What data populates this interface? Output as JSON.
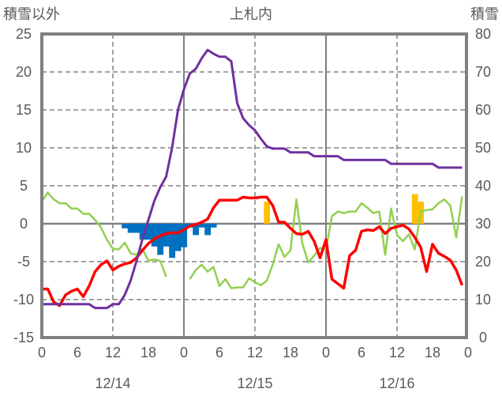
{
  "chart_data": {
    "type": "line",
    "title": "上札内",
    "ylabel_left": "積雪以外",
    "ylabel_right": "積雪",
    "ylim_left": [
      -15,
      25
    ],
    "ylim_right": [
      0,
      80
    ],
    "left_ticks": [
      "25",
      "20",
      "15",
      "10",
      "5",
      "0",
      "-5",
      "-10",
      "-15"
    ],
    "right_ticks": [
      "80",
      "70",
      "60",
      "50",
      "40",
      "30",
      "20",
      "10",
      "0"
    ],
    "x_range_hours": [
      0,
      72
    ],
    "x_tick_labels": [
      "0",
      "6",
      "12",
      "18",
      "0",
      "6",
      "12",
      "18",
      "0",
      "6",
      "12",
      "18",
      "0"
    ],
    "date_labels": [
      "12/14",
      "12/15",
      "12/16"
    ],
    "grid": true,
    "series": [
      {
        "key": "purple",
        "kind": "line",
        "color": "#7030A0",
        "values": [
          -10.6,
          -10.6,
          -10.6,
          -10.6,
          -10.6,
          -10.6,
          -10.6,
          -10.6,
          -10.6,
          -11.1,
          -11.1,
          -11.1,
          -10.6,
          -10.6,
          -9.4,
          -7.5,
          -4.9,
          -2,
          0.5,
          3,
          4.8,
          6.2,
          10,
          15,
          17.7,
          19.8,
          20.4,
          21.8,
          22.9,
          22.4,
          22,
          22,
          21.4,
          15.9,
          13.9,
          13,
          12.3,
          11.2,
          10.2,
          9.9,
          9.9,
          9.9,
          9.4,
          9.4,
          9.4,
          9.4,
          8.9,
          8.9,
          8.9,
          8.9,
          8.9,
          8.4,
          8.4,
          8.4,
          8.4,
          8.4,
          8.4,
          8.4,
          8.4,
          7.9,
          7.9,
          7.9,
          7.9,
          7.9,
          7.9,
          7.9,
          7.9,
          7.4,
          7.4,
          7.4,
          7.4,
          7.4
        ]
      },
      {
        "key": "red",
        "kind": "line",
        "color": "#FF0000",
        "values": [
          -8.6,
          -8.6,
          -10.3,
          -10.8,
          -9.4,
          -8.9,
          -8.6,
          -9.6,
          -8.2,
          -6.3,
          -5.4,
          -4.9,
          -6.1,
          -5.6,
          -5.3,
          -5.1,
          -4.5,
          -3.5,
          -2.6,
          -2,
          -1.6,
          -1.3,
          -1.2,
          -1.2,
          -0.8,
          -0.3,
          -0.1,
          0.2,
          0.6,
          2.1,
          3.1,
          3.1,
          3.1,
          3.1,
          3.5,
          3.4,
          3.4,
          3.5,
          3.5,
          2.4,
          0.2,
          0.2,
          -0.6,
          -1.3,
          -1.4,
          -1,
          -2.3,
          -4.5,
          -2.1,
          -7.3,
          -7.9,
          -8.5,
          -4.2,
          -3.5,
          -1,
          -0.8,
          -0.9,
          -0.4,
          -1.3,
          -0.6,
          -0.4,
          -0.2,
          -0.7,
          -1.8,
          -3.1,
          -6.3,
          -2.7,
          -3.9,
          -4.3,
          -4.8,
          -6.1,
          -8.1
        ]
      },
      {
        "key": "green",
        "kind": "line",
        "color": "#92D050",
        "values": [
          2.9,
          4.1,
          3.2,
          2.7,
          2.7,
          2,
          2,
          1.3,
          1.3,
          0.5,
          -0.5,
          -2.1,
          -3.3,
          -3.4,
          -2.5,
          -3.9,
          -4.1,
          -3.3,
          -4.9,
          -4.7,
          -4.9,
          -7,
          null,
          null,
          null,
          -7.3,
          -6.1,
          -5.4,
          -6.3,
          -5.7,
          -8.2,
          -7.3,
          -8.5,
          -8.4,
          -8.4,
          -7.2,
          -7.7,
          -8.1,
          -7.5,
          -5.4,
          -2.7,
          -4.4,
          -3.5,
          3.2,
          -2.6,
          -5.1,
          -4.2,
          -3.2,
          -3.4,
          1,
          1.6,
          1.4,
          1.6,
          1.6,
          2.7,
          2.1,
          1.4,
          1.6,
          -4.1,
          2,
          -1.5,
          -2.3,
          -1.4,
          -3.4,
          1.6,
          1.8,
          1.9,
          2.7,
          3.2,
          2.4,
          -1.8,
          3.6
        ]
      },
      {
        "key": "blue",
        "kind": "bar",
        "color": "#0070C0",
        "hours": [
          14,
          15,
          16,
          17,
          18,
          19,
          20,
          21,
          22,
          23,
          24,
          25,
          26,
          27,
          28,
          29
        ],
        "values": [
          -0.6,
          -1.2,
          -1.2,
          -2.1,
          -2.1,
          -3,
          -4.1,
          -3,
          -4.5,
          -3.6,
          -3.1,
          -0.5,
          -1.5,
          -0.5,
          -1.5,
          -0.5
        ]
      },
      {
        "key": "yellow",
        "kind": "bar",
        "color": "#FFC000",
        "hours": [
          38,
          63,
          64
        ],
        "values": [
          2.9,
          3.9,
          2.9
        ]
      }
    ]
  }
}
